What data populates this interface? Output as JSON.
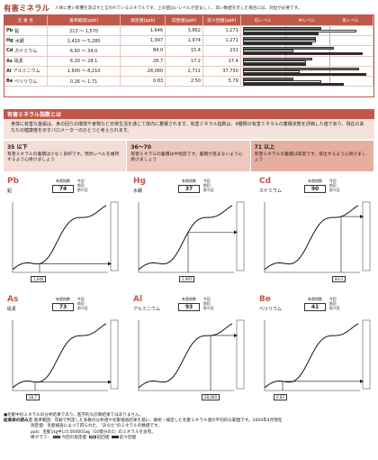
{
  "header": {
    "title": "有害ミネラル",
    "desc": "人体に悪い影響を及ぼすと言われているミネラルです。上の値はいレベルが望ましく、高い数値を示した場合には、対処が必要です。"
  },
  "table": {
    "headers": [
      "元 素 名",
      "基準範囲(ppb)",
      "測定値(ppb)",
      "前回値(ppb)",
      "前々回値(ppb)",
      "低レベル",
      "中レベル",
      "高レベル"
    ],
    "rows": [
      {
        "sym": "Pb",
        "name": "鉛",
        "range": "213 ～ 1,570",
        "v": "1,646",
        "p": "3,862",
        "pp": "1,271",
        "bars": [
          0.62,
          0.9,
          0.6
        ]
      },
      {
        "sym": "Hg",
        "name": "水銀",
        "range": "1,410 ～ 5,280",
        "v": "1,997",
        "p": "1,974",
        "pp": "1,271",
        "bars": [
          0.58,
          0.58,
          0.55
        ]
      },
      {
        "sym": "Cd",
        "name": "カドミウム",
        "range": "6.60 ～ 34.0",
        "v": "84.0",
        "p": "15.4",
        "pp": "231",
        "bars": [
          0.72,
          0.4,
          0.95
        ]
      },
      {
        "sym": "As",
        "name": "砒素",
        "range": "6.20 ～ 28.1",
        "v": "28.7",
        "p": "17.2",
        "pp": "17.4",
        "bars": [
          0.55,
          0.5,
          0.5
        ]
      },
      {
        "sym": "Al",
        "name": "アルミニウム",
        "range": "1,600 ～ 8,210",
        "v": "28,060",
        "p": "2,711",
        "pp": "37,730",
        "bars": [
          0.92,
          0.45,
          0.98
        ]
      },
      {
        "sym": "Be",
        "name": "ベリリウム",
        "range": "0.26 ～ 1.71",
        "v": "0.83",
        "p": "2.50",
        "pp": "5.79",
        "bars": [
          0.4,
          0.62,
          0.8
        ]
      }
    ]
  },
  "index_section": {
    "title": "有害ミネラル指数とは",
    "body": "身体に有害な金属は、身の回りの環境や食物など日常生活を通じて体内に蓄積されます。有害ミネラル指数は、6種類の有害ミネラルの蓄積状態を評価した値であり、現在のあなたの健康度を示すパロメーターのひとつと考えられます。",
    "levels": [
      {
        "h": "35 以下",
        "p": "有害ミネラルの蓄積は少なく良好です。現状レベルを維持するよう心掛けましょう"
      },
      {
        "h": "36～70",
        "p": "有害ミネラルの蓄積は中程度です。蓄積が進まないよう心掛けましょう"
      },
      {
        "h": "71 以上",
        "p": "有害ミネラルの蓄積は高度です。排出するよう心掛けましょう"
      }
    ]
  },
  "charts": [
    {
      "sym": "Pb",
      "name": "鉛",
      "ilabel": "有害指数",
      "index": "74",
      "mv": "1,646",
      "pos": 0.3
    },
    {
      "sym": "Hg",
      "name": "水銀",
      "ilabel": "有害指数",
      "index": "37",
      "mv": "1,997",
      "pos": 0.55
    },
    {
      "sym": "Cd",
      "name": "カドミウム",
      "ilabel": "有害指数",
      "index": "90",
      "mv": "84.0",
      "pos": 0.85
    },
    {
      "sym": "As",
      "name": "砒素",
      "ilabel": "有害指数",
      "index": "73",
      "mv": "28.7",
      "pos": 0.25
    },
    {
      "sym": "Al",
      "name": "アルミニウム",
      "ilabel": "有害指数",
      "index": "93",
      "mv": "28,060",
      "pos": 0.8
    },
    {
      "sym": "Be",
      "name": "ベリリウム",
      "ilabel": "有害指数",
      "index": "41",
      "mv": "0.83",
      "pos": 0.2
    }
  ],
  "chart_legend": [
    "今回",
    "前回",
    "前々回"
  ],
  "footer": {
    "note": "●毛髪中のミネラルの分析結果であり、医学的な診断結果ではありません。",
    "howto": "結果表の読み方",
    "l1": "基準範囲：年齢で判定した多数の分析値や毛髪検査結果を基に、解析・検定した毛髪ミネラル値の平均的な範囲です。2004年4月現在",
    "l2": "測定値：毛髪検査によって得られた、\"あなた\"のミネラルの数値です。",
    "l3": "ppb：毛髪1㎏中に0.000001㎎（10億分の1）のミネラルを含有。",
    "l4": "棒グラフ：",
    "lg": [
      "今回の測定値",
      "前回値",
      "前々回値"
    ]
  }
}
